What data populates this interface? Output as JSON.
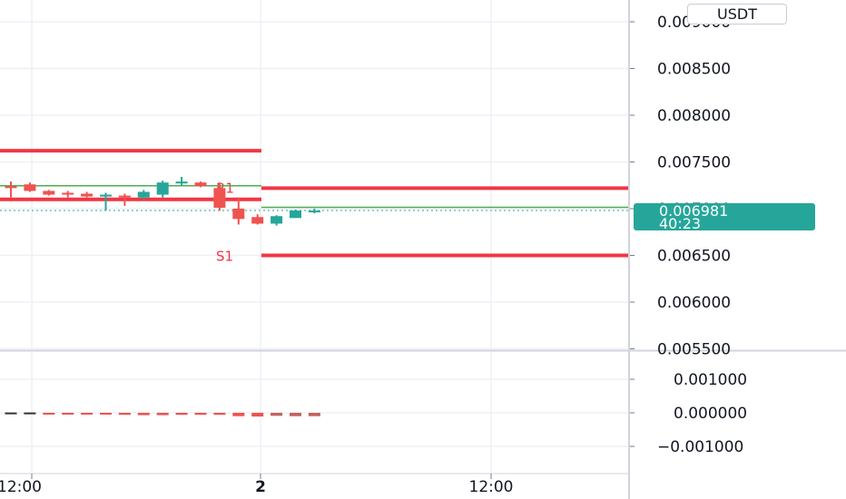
{
  "currency": "USDT",
  "colors": {
    "up": "#26a69a",
    "down": "#ef5350",
    "pivot_line": "#f23645",
    "ma_line": "#4caf50",
    "grid": "#eef0f5",
    "axis": "#d1d4dc"
  },
  "last_price": {
    "value": "0.006981",
    "countdown": "40:23"
  },
  "price_scale": {
    "ticks": [
      "0.009000",
      "0.008500",
      "0.008000",
      "0.007500",
      "0.007000",
      "0.006500",
      "0.006000",
      "0.005500"
    ]
  },
  "indicator_scale": {
    "ticks": [
      "0.001000",
      "0.000000",
      "−0.001000"
    ]
  },
  "time_axis": {
    "labels": [
      "12:00",
      "2",
      "12:00"
    ]
  },
  "pivots": [
    {
      "name": "",
      "value": 0.00762
    },
    {
      "name": "",
      "value": 0.0071
    },
    {
      "name": "R1",
      "value": 0.00722
    },
    {
      "name": "S1",
      "value": 0.0065
    }
  ],
  "chart_data": {
    "type": "candlestick",
    "ylim": [
      0.00548,
      0.0091
    ],
    "series": [
      {
        "o": 0.00724,
        "h": 0.00729,
        "l": 0.00712,
        "c": 0.00722
      },
      {
        "o": 0.00726,
        "h": 0.00728,
        "l": 0.00718,
        "c": 0.00719
      },
      {
        "o": 0.00719,
        "h": 0.0072,
        "l": 0.00714,
        "c": 0.00715
      },
      {
        "o": 0.00717,
        "h": 0.00719,
        "l": 0.00712,
        "c": 0.00715
      },
      {
        "o": 0.00716,
        "h": 0.00718,
        "l": 0.00712,
        "c": 0.00713
      },
      {
        "o": 0.00713,
        "h": 0.00717,
        "l": 0.00698,
        "c": 0.00715
      },
      {
        "o": 0.00714,
        "h": 0.00716,
        "l": 0.00703,
        "c": 0.00713
      },
      {
        "o": 0.00712,
        "h": 0.0072,
        "l": 0.0071,
        "c": 0.00718
      },
      {
        "o": 0.00715,
        "h": 0.0073,
        "l": 0.00712,
        "c": 0.00728
      },
      {
        "o": 0.00727,
        "h": 0.00734,
        "l": 0.00725,
        "c": 0.00729
      },
      {
        "o": 0.00728,
        "h": 0.00729,
        "l": 0.00723,
        "c": 0.00724
      },
      {
        "o": 0.00722,
        "h": 0.00728,
        "l": 0.00698,
        "c": 0.00701
      },
      {
        "o": 0.007,
        "h": 0.00712,
        "l": 0.00683,
        "c": 0.00689
      },
      {
        "o": 0.00691,
        "h": 0.00694,
        "l": 0.00683,
        "c": 0.00684
      },
      {
        "o": 0.00684,
        "h": 0.00693,
        "l": 0.00682,
        "c": 0.00692
      },
      {
        "o": 0.0069,
        "h": 0.00699,
        "l": 0.0069,
        "c": 0.00698
      },
      {
        "o": 0.00698,
        "h": 0.007,
        "l": 0.00695,
        "c": 0.00698
      }
    ],
    "indicator_ylim": [
      -0.00145,
      0.0014
    ],
    "indicator_values": [
      1e-05,
      1e-05,
      0.0,
      0.0,
      -4e-05,
      -5e-05,
      -6e-05,
      -7e-05,
      -7e-05,
      -6e-05,
      -6e-05,
      -6e-05,
      -0.0001,
      -0.00011,
      -9e-05,
      -0.0001,
      -0.0001
    ]
  }
}
